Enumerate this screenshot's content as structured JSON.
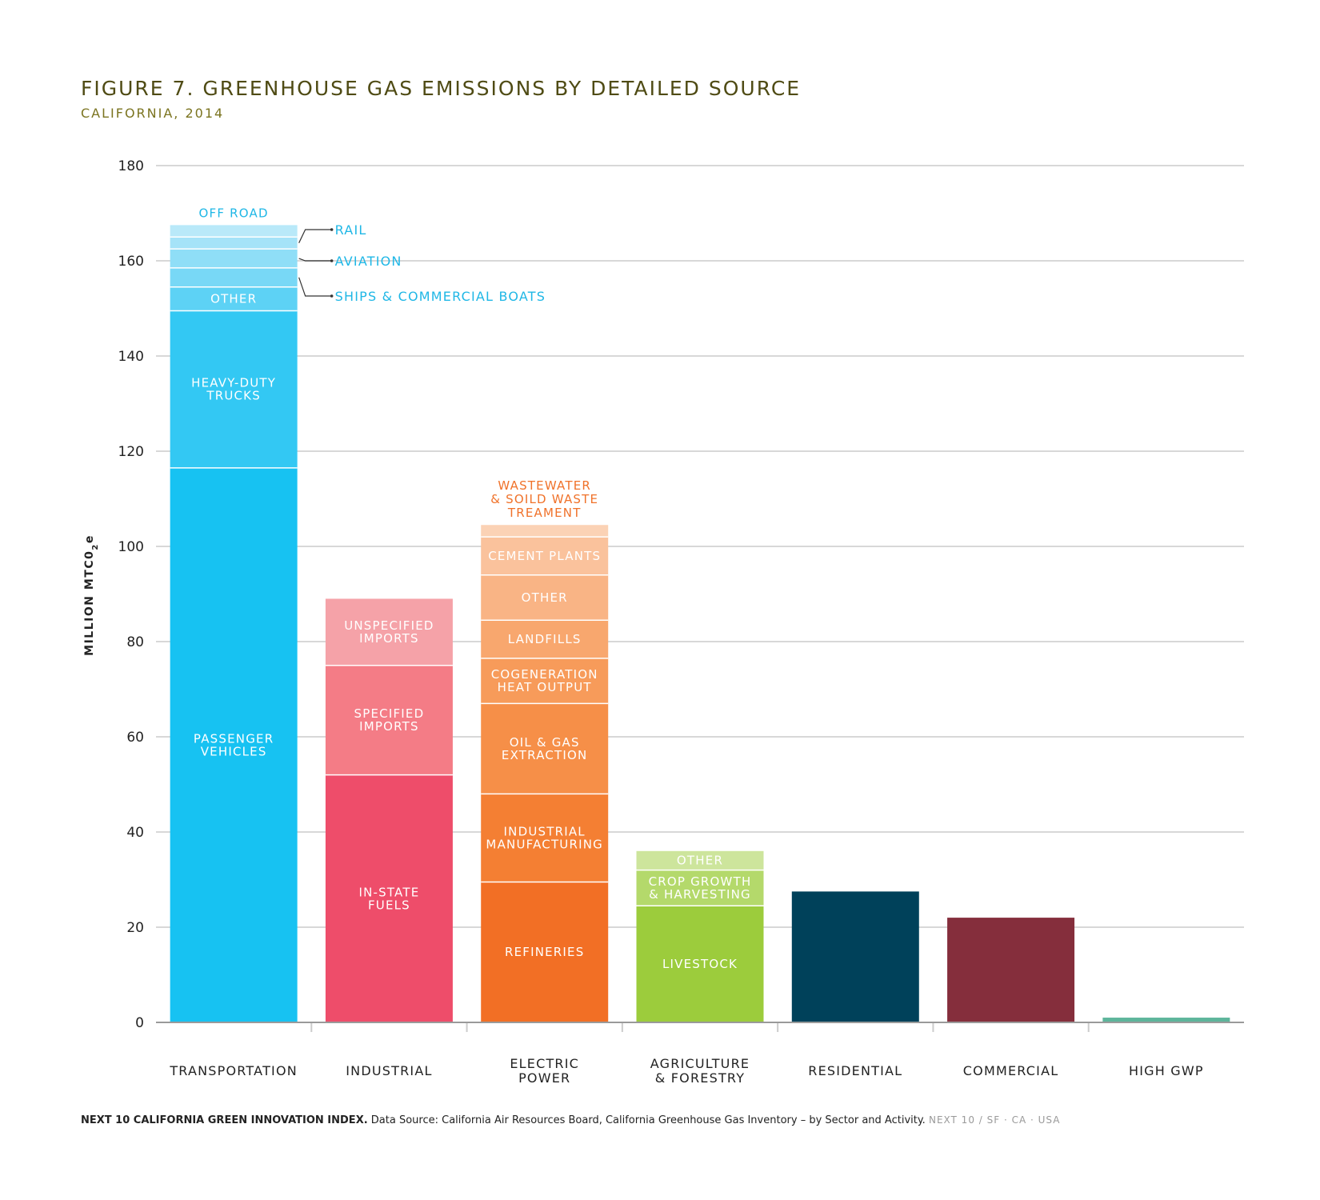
{
  "chart_data": {
    "type": "bar",
    "stacked": true,
    "title": "FIGURE 7. GREENHOUSE GAS EMISSIONS BY DETAILED SOURCE",
    "subtitle": "CALIFORNIA, 2014",
    "xlabel": "",
    "ylabel": "MILLION MTC0",
    "ylabel_sub": "2",
    "ylabel_suffix": "e",
    "ylim": [
      0,
      180
    ],
    "yticks": [
      0,
      20,
      40,
      60,
      80,
      100,
      120,
      140,
      160,
      180
    ],
    "grid": true,
    "categories": [
      {
        "label": [
          "TRANSPORTATION"
        ],
        "segments": [
          {
            "name": "Passenger Vehicles",
            "label": [
              "PASSENGER",
              "VEHICLES"
            ],
            "value": 116.5,
            "color": "#17c2f2"
          },
          {
            "name": "Heavy-Duty Trucks",
            "label": [
              "HEAVY-DUTY",
              "TRUCKS"
            ],
            "value": 33,
            "color": "#33c8f3"
          },
          {
            "name": "Other",
            "label": [
              "OTHER"
            ],
            "value": 5,
            "color": "#5dd2f5"
          },
          {
            "name": "Ships & Commercial Boats",
            "label": [],
            "value": 4,
            "color": "#78d8f6"
          },
          {
            "name": "Aviation",
            "label": [],
            "value": 4,
            "color": "#8fdef7"
          },
          {
            "name": "Rail",
            "label": [],
            "value": 2.5,
            "color": "#a5e3f8"
          },
          {
            "name": "Off Road",
            "label": [],
            "value": 2.5,
            "color": "#b9e9f9"
          }
        ],
        "top_label": [
          "OFF ROAD"
        ],
        "top_label_color": "#1fb7e6"
      },
      {
        "label": [
          "INDUSTRIAL"
        ],
        "segments": [
          {
            "name": "In-State Fuels",
            "label": [
              "IN-STATE",
              "FUELS"
            ],
            "value": 52,
            "color": "#ee4d6a"
          },
          {
            "name": "Specified Imports",
            "label": [
              "SPECIFIED",
              "IMPORTS"
            ],
            "value": 23,
            "color": "#f47c86"
          },
          {
            "name": "Unspecified Imports",
            "label": [
              "UNSPECIFIED",
              "IMPORTS"
            ],
            "value": 14,
            "color": "#f5a2a8"
          }
        ]
      },
      {
        "label": [
          "ELECTRIC",
          "POWER"
        ],
        "segments": [
          {
            "name": "Refineries",
            "label": [
              "REFINERIES"
            ],
            "value": 29.5,
            "color": "#f26f25"
          },
          {
            "name": "Industrial Manufacturing",
            "label": [
              "INDUSTRIAL",
              "MANUFACTURING"
            ],
            "value": 18.5,
            "color": "#f47f33"
          },
          {
            "name": "Oil & Gas Extraction",
            "label": [
              "OIL & GAS",
              "EXTRACTION"
            ],
            "value": 19,
            "color": "#f68f48"
          },
          {
            "name": "Cogeneration Heat Output",
            "label": [
              "COGENERATION",
              "HEAT OUTPUT"
            ],
            "value": 9.5,
            "color": "#f79b5a"
          },
          {
            "name": "Landfills",
            "label": [
              "LANDFILLS"
            ],
            "value": 8,
            "color": "#f8a76e"
          },
          {
            "name": "Other",
            "label": [
              "OTHER"
            ],
            "value": 9.5,
            "color": "#f9b485"
          },
          {
            "name": "Cement Plants",
            "label": [
              "CEMENT PLANTS"
            ],
            "value": 8,
            "color": "#fac29c"
          },
          {
            "name": "Wastewater & Soild Waste Treament",
            "label": [],
            "value": 2.5,
            "color": "#fbd2b5"
          }
        ],
        "top_label": [
          "WASTEWATER",
          "& SOILD WASTE",
          "TREAMENT"
        ],
        "top_label_color": "#f0722a"
      },
      {
        "label": [
          "AGRICULTURE",
          "& FORESTRY"
        ],
        "segments": [
          {
            "name": "Livestock",
            "label": [
              "LIVESTOCK"
            ],
            "value": 24.5,
            "color": "#9ccc3c"
          },
          {
            "name": "Crop Growth & Harvesting",
            "label": [
              "CROP GROWTH",
              "& HARVESTING"
            ],
            "value": 7.5,
            "color": "#b4d96b"
          },
          {
            "name": "Other",
            "label": [
              "OTHER"
            ],
            "value": 4,
            "color": "#cde59c"
          }
        ]
      },
      {
        "label": [
          "RESIDENTIAL"
        ],
        "segments": [
          {
            "name": "Residential",
            "label": [],
            "value": 27.5,
            "color": "#00415a"
          }
        ]
      },
      {
        "label": [
          "COMMERCIAL"
        ],
        "segments": [
          {
            "name": "Commercial",
            "label": [],
            "value": 22,
            "color": "#852e3c"
          }
        ]
      },
      {
        "label": [
          "HIGH GWP"
        ],
        "segments": [
          {
            "name": "High GWP",
            "label": [],
            "value": 1,
            "color": "#5db59b"
          }
        ]
      }
    ],
    "annotations": [
      {
        "text": "RAIL",
        "category": 0,
        "segment": 5,
        "row": 0
      },
      {
        "text": "AVIATION",
        "category": 0,
        "segment": 4,
        "row": 1
      },
      {
        "text": "SHIPS & COMMERCIAL BOATS",
        "category": 0,
        "segment": 3,
        "row": 2
      }
    ],
    "annotation_color": "#1fb7e6"
  },
  "footer": {
    "brand": "NEXT 10 CALIFORNIA GREEN INNOVATION INDEX.",
    "source": " Data Source: California Air Resources Board, California Greenhouse Gas Inventory – by Sector and Activity.",
    "tag": "NEXT 10  /  SF · CA · USA"
  }
}
